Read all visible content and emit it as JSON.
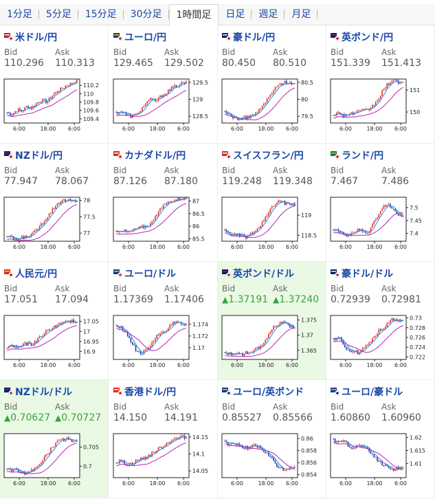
{
  "tabs": [
    {
      "label": "1分足",
      "active": false
    },
    {
      "label": "5分足",
      "active": false
    },
    {
      "label": "15分足",
      "active": false
    },
    {
      "label": "30分足",
      "active": false
    },
    {
      "label": "1時間足",
      "active": true
    },
    {
      "label": "日足",
      "active": false
    },
    {
      "label": "週足",
      "active": false
    },
    {
      "label": "月足",
      "active": false
    }
  ],
  "labels": {
    "bid": "Bid",
    "ask": "Ask"
  },
  "chart_x_labels": [
    "6:00",
    "18:00",
    "6:00"
  ],
  "colors": {
    "link": "#1a47a8",
    "up_candle": "#e8302a",
    "down_candle": "#1f3aa8",
    "ma_short": "#1d8fe8",
    "ma_long": "#b424b4",
    "highlight": "#e9f9e4",
    "uptick": "#3aa33a"
  },
  "pairs": [
    {
      "title": "米ドル/円",
      "flag": "usjp-flag-icon",
      "bid": "110.296",
      "ask": "110.313",
      "up_arrow": false,
      "highlight": false,
      "chart_data": {
        "type": "candlestick",
        "y_ticks": [
          "110.2",
          "110",
          "109.8",
          "109.6",
          "109.4"
        ],
        "ylim": [
          109.3,
          110.35
        ],
        "trend": [
          109.55,
          109.5,
          109.62,
          109.58,
          109.7,
          109.66,
          109.78,
          109.85,
          109.8,
          109.95,
          110.05,
          110.12,
          110.2,
          110.25,
          110.3
        ]
      }
    },
    {
      "title": "ユーロ/円",
      "flag": "eujp-flag-icon",
      "bid": "129.465",
      "ask": "129.502",
      "up_arrow": false,
      "highlight": false,
      "chart_data": {
        "type": "candlestick",
        "y_ticks": [
          "129.5",
          "129",
          "128.5"
        ],
        "ylim": [
          128.3,
          129.6
        ],
        "trend": [
          128.6,
          128.65,
          128.55,
          128.5,
          128.55,
          128.7,
          128.9,
          129.0,
          128.95,
          129.1,
          129.2,
          129.3,
          129.4,
          129.45,
          129.5
        ]
      }
    },
    {
      "title": "豪ドル/円",
      "flag": "aujp-flag-icon",
      "bid": "80.450",
      "ask": "80.510",
      "up_arrow": false,
      "highlight": false,
      "chart_data": {
        "type": "candlestick",
        "y_ticks": [
          "80.5",
          "80",
          "79.5"
        ],
        "ylim": [
          79.3,
          80.6
        ],
        "trend": [
          79.6,
          79.55,
          79.45,
          79.42,
          79.45,
          79.5,
          79.55,
          79.7,
          79.9,
          80.1,
          80.3,
          80.45,
          80.5,
          80.5,
          80.45
        ]
      }
    },
    {
      "title": "英ポンド/円",
      "flag": "gbjp-flag-icon",
      "bid": "151.339",
      "ask": "151.413",
      "up_arrow": false,
      "highlight": false,
      "chart_data": {
        "type": "candlestick",
        "y_ticks": [
          "151",
          "150"
        ],
        "ylim": [
          149.5,
          151.5
        ],
        "trend": [
          149.9,
          149.95,
          149.85,
          149.9,
          149.95,
          150.0,
          150.05,
          150.1,
          150.3,
          150.6,
          151.0,
          151.3,
          151.4,
          151.35,
          151.35
        ]
      }
    },
    {
      "title": "NZドル/円",
      "flag": "nzjp-flag-icon",
      "bid": "77.947",
      "ask": "78.067",
      "up_arrow": false,
      "highlight": false,
      "chart_data": {
        "type": "candlestick",
        "y_ticks": [
          "78",
          "77.5",
          "77"
        ],
        "ylim": [
          76.75,
          78.1
        ],
        "trend": [
          76.9,
          76.85,
          76.8,
          76.85,
          76.9,
          76.95,
          77.1,
          77.3,
          77.5,
          77.7,
          77.9,
          78.0,
          78.0,
          77.98,
          77.95
        ]
      }
    },
    {
      "title": "カナダドル/円",
      "flag": "cajp-flag-icon",
      "bid": "87.126",
      "ask": "87.180",
      "up_arrow": false,
      "highlight": false,
      "chart_data": {
        "type": "candlestick",
        "y_ticks": [
          "87",
          "86.5",
          "86",
          "85.5"
        ],
        "ylim": [
          85.4,
          87.15
        ],
        "trend": [
          85.8,
          85.85,
          85.75,
          85.8,
          85.9,
          85.95,
          86.0,
          86.1,
          86.5,
          86.7,
          86.9,
          87.0,
          87.05,
          87.1,
          87.1
        ]
      }
    },
    {
      "title": "スイスフラン/円",
      "flag": "chjp-flag-icon",
      "bid": "119.248",
      "ask": "119.348",
      "up_arrow": false,
      "highlight": false,
      "chart_data": {
        "type": "candlestick",
        "y_ticks": [
          "119",
          "118.5"
        ],
        "ylim": [
          118.35,
          119.45
        ],
        "trend": [
          118.6,
          118.55,
          118.5,
          118.5,
          118.45,
          118.5,
          118.6,
          118.7,
          118.9,
          119.1,
          119.3,
          119.35,
          119.3,
          119.25,
          119.25
        ]
      }
    },
    {
      "title": "ランド/円",
      "flag": "zajp-flag-icon",
      "bid": "7.467",
      "ask": "7.486",
      "up_arrow": false,
      "highlight": false,
      "chart_data": {
        "type": "candlestick",
        "y_ticks": [
          "7.5",
          "7.45",
          "7.4"
        ],
        "ylim": [
          7.37,
          7.54
        ],
        "trend": [
          7.42,
          7.41,
          7.4,
          7.39,
          7.4,
          7.42,
          7.41,
          7.4,
          7.44,
          7.47,
          7.5,
          7.52,
          7.49,
          7.47,
          7.47
        ]
      }
    },
    {
      "title": "人民元/円",
      "flag": "cnjp-flag-icon",
      "bid": "17.051",
      "ask": "17.094",
      "up_arrow": false,
      "highlight": false,
      "chart_data": {
        "type": "candlestick",
        "y_ticks": [
          "17.05",
          "17",
          "16.95",
          "16.9"
        ],
        "ylim": [
          16.86,
          17.08
        ],
        "trend": [
          16.92,
          16.93,
          16.92,
          16.93,
          16.94,
          16.93,
          16.96,
          16.98,
          17.0,
          17.02,
          17.03,
          17.04,
          17.05,
          17.05,
          17.05
        ]
      }
    },
    {
      "title": "ユーロ/ドル",
      "flag": "euus-flag-icon",
      "bid": "1.17369",
      "ask": "1.17406",
      "up_arrow": false,
      "highlight": false,
      "chart_data": {
        "type": "candlestick",
        "y_ticks": [
          "1.174",
          "1.172",
          "1.17"
        ],
        "ylim": [
          1.168,
          1.1755
        ],
        "trend": [
          1.1738,
          1.1735,
          1.1725,
          1.171,
          1.1695,
          1.169,
          1.1695,
          1.1705,
          1.172,
          1.1725,
          1.1728,
          1.174,
          1.1745,
          1.174,
          1.1737
        ]
      }
    },
    {
      "title": "英ポンド/ドル",
      "flag": "gbus-flag-icon",
      "bid": "1.37191",
      "ask": "1.37240",
      "up_arrow": true,
      "highlight": true,
      "chart_data": {
        "type": "candlestick",
        "y_ticks": [
          "1.375",
          "1.37",
          "1.365"
        ],
        "ylim": [
          1.362,
          1.3765
        ],
        "trend": [
          1.364,
          1.3638,
          1.3642,
          1.3635,
          1.364,
          1.3645,
          1.365,
          1.366,
          1.368,
          1.371,
          1.373,
          1.374,
          1.3745,
          1.373,
          1.372
        ]
      }
    },
    {
      "title": "豪ドル/ドル",
      "flag": "auus-flag-icon",
      "bid": "0.72939",
      "ask": "0.72981",
      "up_arrow": false,
      "highlight": false,
      "chart_data": {
        "type": "candlestick",
        "y_ticks": [
          "0.73",
          "0.728",
          "0.726",
          "0.724",
          "0.722"
        ],
        "ylim": [
          0.7215,
          0.7305
        ],
        "trend": [
          0.7255,
          0.7262,
          0.7245,
          0.7235,
          0.7232,
          0.7228,
          0.724,
          0.7248,
          0.726,
          0.7272,
          0.728,
          0.7292,
          0.7298,
          0.7294,
          0.7294
        ]
      }
    },
    {
      "title": "NZドル/ドル",
      "flag": "nzus-flag-icon",
      "bid": "0.70627",
      "ask": "0.70727",
      "up_arrow": true,
      "highlight": true,
      "chart_data": {
        "type": "candlestick",
        "y_ticks": [
          "0.705",
          "0.7"
        ],
        "ylim": [
          0.697,
          0.7085
        ],
        "trend": [
          0.6995,
          0.6988,
          0.699,
          0.6985,
          0.698,
          0.6988,
          0.7,
          0.7015,
          0.703,
          0.7048,
          0.7062,
          0.707,
          0.7072,
          0.7065,
          0.7063
        ]
      }
    },
    {
      "title": "香港ドル/円",
      "flag": "hkjp-flag-icon",
      "bid": "14.150",
      "ask": "14.191",
      "up_arrow": false,
      "highlight": false,
      "chart_data": {
        "type": "candlestick",
        "y_ticks": [
          "14.15",
          "14.1",
          "14.05"
        ],
        "ylim": [
          14.03,
          14.16
        ],
        "trend": [
          14.075,
          14.08,
          14.07,
          14.07,
          14.08,
          14.085,
          14.09,
          14.1,
          14.11,
          14.12,
          14.13,
          14.14,
          14.145,
          14.15,
          14.15
        ]
      }
    },
    {
      "title": "ユーロ/英ポンド",
      "flag": "eugb-flag-icon",
      "bid": "0.85527",
      "ask": "0.85566",
      "up_arrow": false,
      "highlight": false,
      "chart_data": {
        "type": "candlestick",
        "y_ticks": [
          "0.86",
          "0.858",
          "0.856",
          "0.854"
        ],
        "ylim": [
          0.8535,
          0.8608
        ],
        "trend": [
          0.8595,
          0.859,
          0.8592,
          0.8588,
          0.8585,
          0.8585,
          0.8588,
          0.8584,
          0.8578,
          0.857,
          0.856,
          0.855,
          0.8548,
          0.8552,
          0.8553
        ]
      }
    },
    {
      "title": "ユーロ/豪ドル",
      "flag": "euau-flag-icon",
      "bid": "1.60860",
      "ask": "1.60960",
      "up_arrow": false,
      "highlight": false,
      "chart_data": {
        "type": "candlestick",
        "y_ticks": [
          "1.62",
          "1.615",
          "1.61"
        ],
        "ylim": [
          1.6045,
          1.6215
        ],
        "trend": [
          1.619,
          1.618,
          1.6185,
          1.617,
          1.616,
          1.617,
          1.6165,
          1.615,
          1.613,
          1.611,
          1.6095,
          1.6085,
          1.6075,
          1.6083,
          1.6086
        ]
      }
    }
  ]
}
